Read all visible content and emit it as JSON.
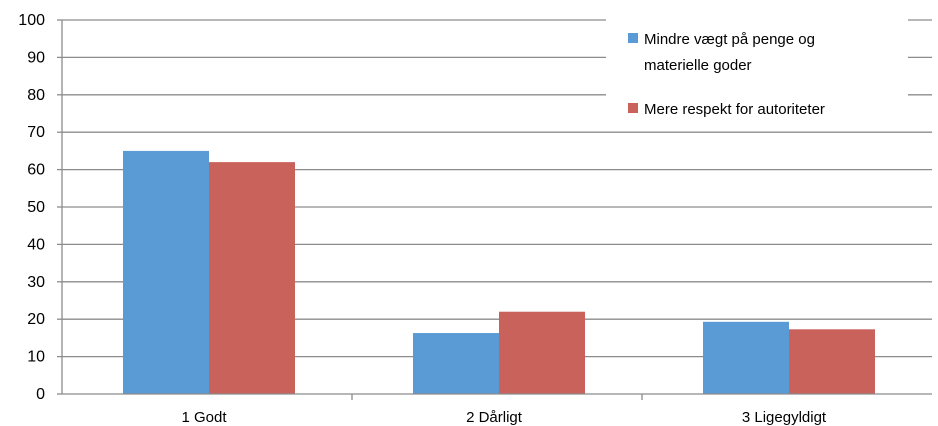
{
  "chart_data": {
    "type": "bar",
    "title": "",
    "xlabel": "",
    "ylabel": "",
    "categories": [
      "1 Godt",
      "2 Dårligt",
      "3 Ligegyldigt"
    ],
    "series": [
      {
        "name": "Mindre vægt på penge og materielle goder",
        "values": [
          65,
          16.3,
          19.3
        ],
        "color": "#5b9bd5"
      },
      {
        "name": "Mere respekt for autoriteter",
        "values": [
          62,
          22,
          17.3
        ],
        "color": "#c9625b"
      }
    ],
    "ylim": [
      0,
      100
    ],
    "yticks": [
      0,
      10,
      20,
      30,
      40,
      50,
      60,
      70,
      80,
      90,
      100
    ],
    "grid": true,
    "legend": {
      "placement": "top-right",
      "lines": [
        [
          "Mindre vægt på penge og",
          "materielle goder"
        ],
        [
          "Mere respekt for autoriteter"
        ]
      ]
    }
  }
}
